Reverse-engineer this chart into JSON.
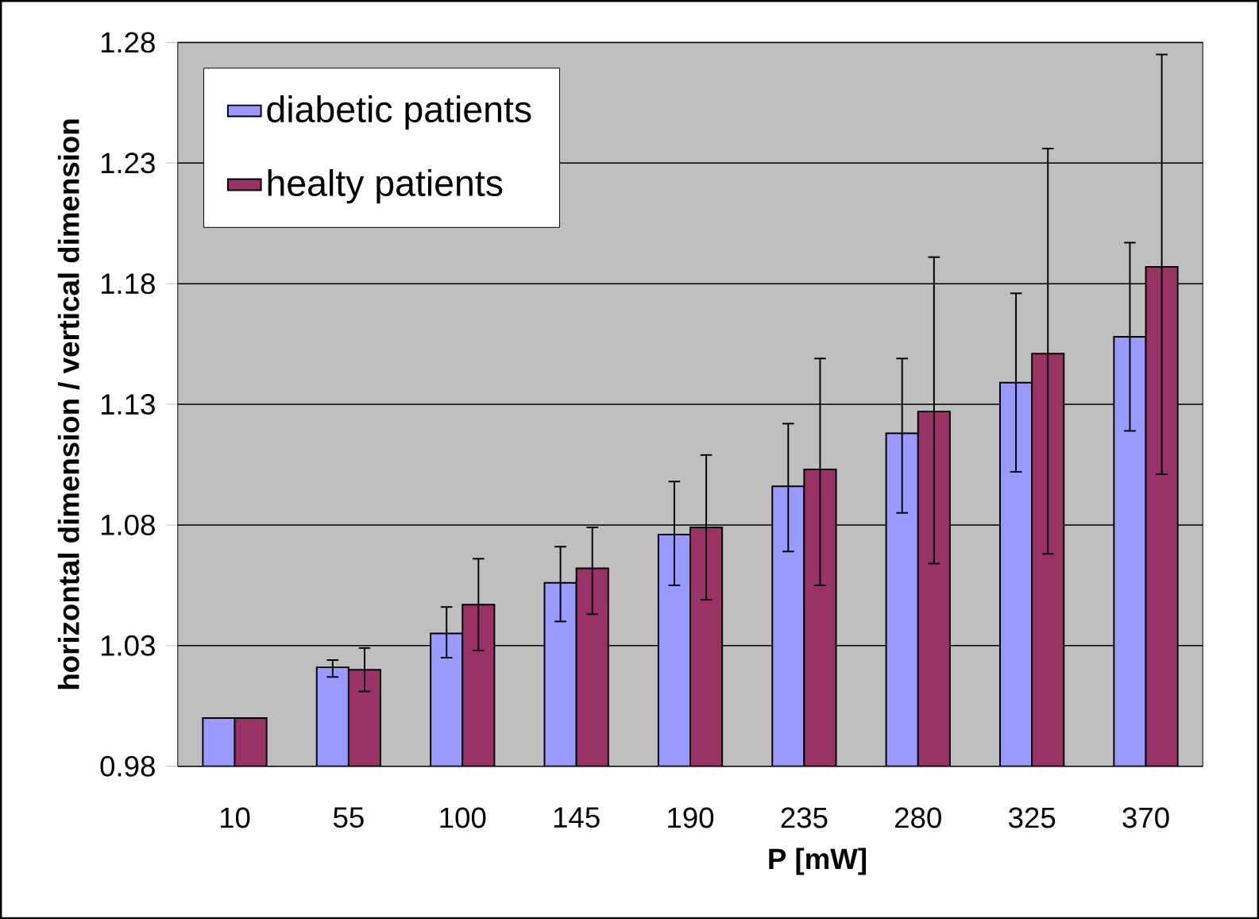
{
  "chart_data": {
    "type": "bar",
    "xlabel": "P [mW]",
    "ylabel": "horizontal dimension / vertical dimension",
    "categories": [
      "10",
      "55",
      "100",
      "145",
      "190",
      "235",
      "280",
      "325",
      "370"
    ],
    "series": [
      {
        "name": "diabetic patients",
        "color": "#9999ff",
        "values": [
          1.0,
          1.021,
          1.035,
          1.056,
          1.076,
          1.096,
          1.118,
          1.139,
          1.158
        ],
        "errors": [
          null,
          [
            1.017,
            1.024
          ],
          [
            1.025,
            1.046
          ],
          [
            1.04,
            1.071
          ],
          [
            1.055,
            1.098
          ],
          [
            1.069,
            1.122
          ],
          [
            1.085,
            1.149
          ],
          [
            1.102,
            1.176
          ],
          [
            1.119,
            1.197
          ]
        ]
      },
      {
        "name": "healty patients",
        "color": "#993366",
        "values": [
          1.0,
          1.02,
          1.047,
          1.062,
          1.079,
          1.103,
          1.127,
          1.151,
          1.187
        ],
        "errors": [
          null,
          [
            1.011,
            1.029
          ],
          [
            1.028,
            1.066
          ],
          [
            1.043,
            1.079
          ],
          [
            1.049,
            1.109
          ],
          [
            1.055,
            1.149
          ],
          [
            1.064,
            1.191
          ],
          [
            1.068,
            1.236
          ],
          [
            1.101,
            1.275
          ]
        ]
      }
    ],
    "ylim": [
      0.98,
      1.28
    ],
    "yticks": [
      0.98,
      1.03,
      1.08,
      1.13,
      1.18,
      1.23,
      1.28
    ],
    "grid": "y",
    "legend": "top left"
  }
}
